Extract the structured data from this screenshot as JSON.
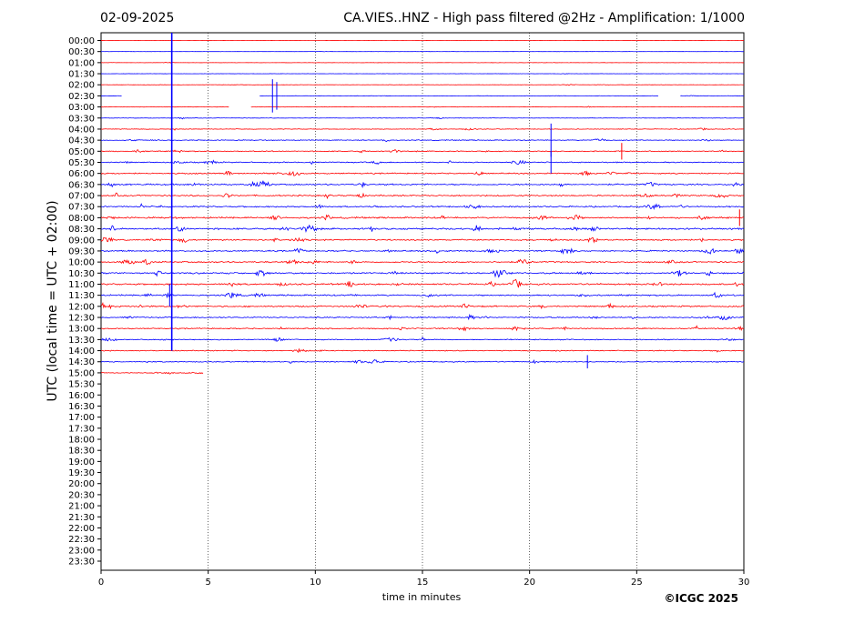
{
  "header": {
    "date": "02-09-2025",
    "title": "CA.VIES..HNZ - High pass filtered @2Hz - Amplification: 1/1000"
  },
  "footer": {
    "copyright": "©ICGC 2025"
  },
  "chart_data": {
    "type": "line",
    "subtype": "helicorder",
    "title": "CA.VIES..HNZ - High pass filtered @2Hz - Amplification: 1/1000",
    "xlabel": "time in minutes",
    "ylabel": "UTC (local time = UTC + 02:00)",
    "xlim": [
      0,
      30
    ],
    "xticks": [
      0,
      5,
      10,
      15,
      20,
      25,
      30
    ],
    "xgrid": "vertical dotted lines at 5-minute ticks",
    "row_labels": [
      "00:00",
      "00:30",
      "01:00",
      "01:30",
      "02:00",
      "02:30",
      "03:00",
      "03:30",
      "04:00",
      "04:30",
      "05:00",
      "05:30",
      "06:00",
      "06:30",
      "07:00",
      "07:30",
      "08:00",
      "08:30",
      "09:00",
      "09:30",
      "10:00",
      "10:30",
      "11:00",
      "11:30",
      "12:00",
      "12:30",
      "13:00",
      "13:30",
      "14:00",
      "14:30",
      "15:00",
      "15:30",
      "16:00",
      "16:30",
      "17:00",
      "17:30",
      "18:00",
      "18:30",
      "19:00",
      "19:30",
      "20:00",
      "20:30",
      "21:00",
      "21:30",
      "22:00",
      "22:30",
      "23:00",
      "23:30"
    ],
    "series_colors": [
      "#ff0000",
      "#0000ff"
    ],
    "color_pattern": "rows alternate red / blue starting with red at 00:00",
    "trace_end_minutes": 4.8,
    "rows_with_data": 31,
    "noise_level": [
      0.1,
      0.1,
      0.12,
      0.12,
      0.15,
      0.2,
      0.15,
      0.2,
      0.3,
      0.4,
      0.45,
      0.5,
      0.55,
      0.65,
      0.6,
      0.6,
      0.7,
      0.75,
      0.6,
      0.6,
      0.65,
      0.7,
      0.7,
      0.65,
      0.65,
      0.6,
      0.5,
      0.45,
      0.4,
      0.45,
      0.35
    ],
    "events": [
      {
        "row": 2,
        "minute": 3.3,
        "amplitude": 25,
        "note": "large spike spanning many rows"
      },
      {
        "row": 5,
        "minute": 8.0,
        "amplitude": 3
      },
      {
        "row": 5,
        "minute": 8.2,
        "amplitude": 2.5
      },
      {
        "row": 9,
        "minute": 21.0,
        "amplitude": 3
      },
      {
        "row": 10,
        "minute": 24.3,
        "amplitude": 1.5
      },
      {
        "row": 11,
        "minute": 21.0,
        "amplitude": 2
      },
      {
        "row": 16,
        "minute": 29.8,
        "amplitude": 1.5
      },
      {
        "row": 23,
        "minute": 3.2,
        "amplitude": 2
      },
      {
        "row": 29,
        "minute": 22.7,
        "amplitude": 1.2
      }
    ],
    "gaps": [
      {
        "row": 5,
        "from": 1.0,
        "to": 7.4
      },
      {
        "row": 5,
        "from": 26.0,
        "to": 27.0
      },
      {
        "row": 6,
        "from": 6.0,
        "to": 7.0
      }
    ]
  }
}
